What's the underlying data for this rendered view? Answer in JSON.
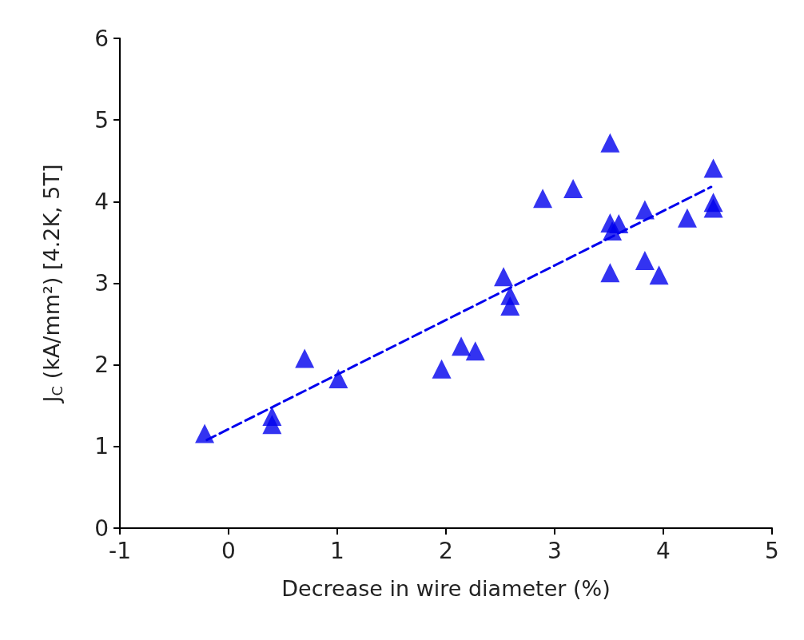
{
  "chart_data": {
    "type": "scatter",
    "xlabel": "Decrease in wire diameter (%)",
    "ylabel": "J$_{C}$ (kA/mm²) [4.2K, 5T]",
    "xlim": [
      -1,
      5
    ],
    "xticks": [
      -1,
      0,
      1,
      2,
      3,
      4,
      5
    ],
    "ylim": [
      0,
      6
    ],
    "yticks": [
      0,
      1,
      2,
      3,
      4,
      5,
      6
    ],
    "grid": false,
    "series": [
      {
        "color": "#0000ee",
        "marker": "triangle",
        "x": [
          -0.22,
          0.4,
          0.4,
          0.7,
          1.01,
          1.96,
          2.14,
          2.27,
          2.53,
          2.59,
          2.59,
          2.89,
          3.17,
          3.51,
          3.51,
          3.53,
          3.59,
          3.51,
          3.83,
          3.83,
          3.96,
          4.22,
          4.46,
          4.46,
          4.46
        ],
        "values": [
          1.16,
          1.37,
          1.27,
          2.08,
          1.83,
          1.95,
          2.23,
          2.17,
          3.08,
          2.85,
          2.72,
          4.04,
          4.16,
          4.72,
          3.74,
          3.64,
          3.73,
          3.13,
          3.9,
          3.28,
          3.1,
          3.8,
          4.41,
          3.99,
          3.92
        ]
      },
      {
        "type": "line",
        "color": "#0000ee",
        "marker": "none",
        "line_style": "dashed",
        "x": [
          -0.2,
          4.44
        ],
        "values": [
          1.08,
          4.18
        ]
      }
    ]
  }
}
